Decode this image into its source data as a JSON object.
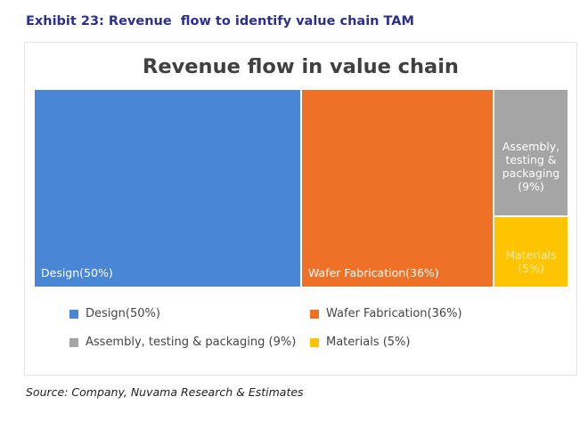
{
  "exhibit": {
    "title": "Exhibit 23: Revenue  flow to identify value chain TAM"
  },
  "source": "Source: Company, Nuvama Research & Estimates",
  "chart_data": {
    "type": "treemap",
    "title": "Revenue flow in value chain",
    "unit": "%",
    "categories": [
      "Design",
      "Wafer Fabrication",
      "Assembly, testing & packaging",
      "Materials"
    ],
    "values": [
      50,
      36,
      9,
      5
    ],
    "tile_labels": [
      "Design(50%)",
      "Wafer Fabrication(36%)",
      "Assembly,\ntesting &\npackaging\n(9%)",
      "Materials\n(5%)"
    ],
    "colors": [
      "#4a86d6",
      "#ee7127",
      "#a5a5a5",
      "#fec400"
    ],
    "legend": {
      "position": "bottom",
      "entries": [
        "Design(50%)",
        "Wafer Fabrication(36%)",
        "Assembly, testing & packaging (9%)",
        "Materials (5%)"
      ]
    }
  }
}
